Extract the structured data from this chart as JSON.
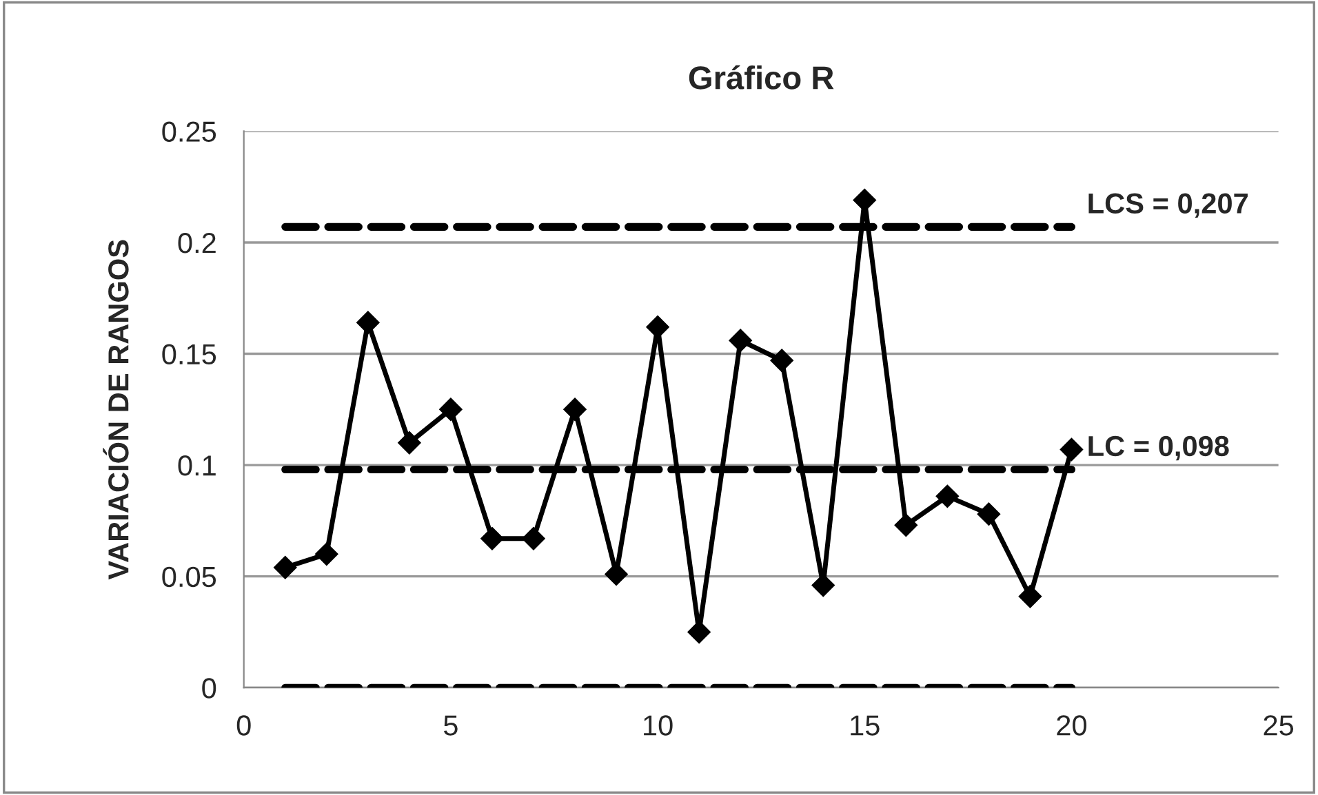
{
  "chart_data": {
    "type": "line",
    "title": "Gráfico R",
    "ylabel": "VARIACIÓN DE RANGOS",
    "x": [
      1,
      2,
      3,
      4,
      5,
      6,
      7,
      8,
      9,
      10,
      11,
      12,
      13,
      14,
      15,
      16,
      17,
      18,
      19,
      20
    ],
    "series": [
      {
        "color": "#000000",
        "values": [
          0.054,
          0.06,
          0.164,
          0.11,
          0.125,
          0.067,
          0.067,
          0.125,
          0.051,
          0.162,
          0.025,
          0.156,
          0.147,
          0.046,
          0.219,
          0.073,
          0.086,
          0.078,
          0.041,
          0.107
        ]
      }
    ],
    "marker": "diamond",
    "line_style": "solid",
    "ref_lines": [
      {
        "axis": "y",
        "value": 0.207,
        "label": "LCS = 0,207",
        "color": "#000000",
        "line_style": "dashed"
      },
      {
        "axis": "y",
        "value": 0.098,
        "label": "LC = 0,098",
        "color": "#000000",
        "line_style": "dashed"
      },
      {
        "axis": "y",
        "value": 0,
        "color": "#000000",
        "line_style": "dashed"
      }
    ],
    "xlim": [
      0,
      25
    ],
    "xticks": [
      0,
      5,
      10,
      15,
      20,
      25
    ],
    "ylim": [
      0,
      0.25
    ],
    "yticks": [
      0,
      0.05,
      0.1,
      0.15,
      0.2,
      0.25
    ],
    "grid": "y"
  }
}
